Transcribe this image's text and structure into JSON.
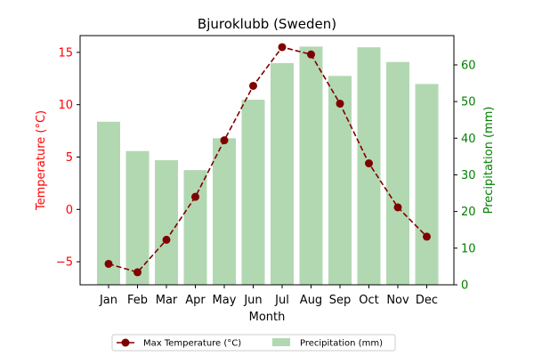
{
  "chart_data": {
    "type": "bar+line",
    "title": "Bjuroklubb (Sweden)",
    "xlabel": "Month",
    "categories": [
      "Jan",
      "Feb",
      "Mar",
      "Apr",
      "May",
      "Jun",
      "Jul",
      "Aug",
      "Sep",
      "Oct",
      "Nov",
      "Dec"
    ],
    "left_axis": {
      "label": "Temperature (°C)",
      "color": "#ff0000",
      "ylim": [
        -7.2,
        16.6
      ],
      "ticks": [
        -5,
        0,
        5,
        10,
        15
      ]
    },
    "right_axis": {
      "label": "Precipitation (mm)",
      "color": "#008000",
      "ylim": [
        0,
        68
      ],
      "ticks": [
        0,
        10,
        20,
        30,
        40,
        50,
        60
      ]
    },
    "series": [
      {
        "name": "Max Temperature (°C)",
        "kind": "line",
        "axis": "left",
        "color": "#800000",
        "line_style": "dashed",
        "marker": "circle",
        "values": [
          -5.2,
          -6.0,
          -2.9,
          1.2,
          6.6,
          11.8,
          15.5,
          14.8,
          10.1,
          4.4,
          0.2,
          -2.6
        ]
      },
      {
        "name": "Precipitation (mm)",
        "kind": "bar",
        "axis": "right",
        "color": "#b2d8b2",
        "values": [
          44.5,
          36.5,
          34,
          31.3,
          40,
          50.5,
          60.5,
          65,
          57,
          64.8,
          60.8,
          54.8
        ]
      }
    ],
    "legend_position": "bottom-center",
    "grid": false
  }
}
